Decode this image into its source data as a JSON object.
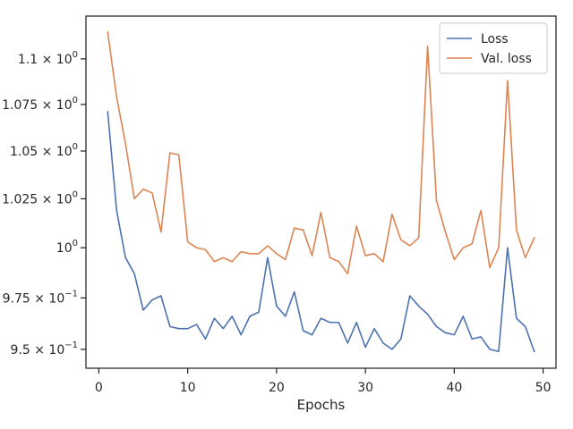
{
  "chart_data": {
    "type": "line",
    "xlabel": "Epochs",
    "ylabel": "",
    "title": "",
    "yscale": "log",
    "xlim": [
      -1.45,
      51.45
    ],
    "ylim": [
      0.941,
      1.124
    ],
    "grid": false,
    "legend_position": "top-right",
    "x_ticks": [
      {
        "value": 0,
        "label": "0"
      },
      {
        "value": 10,
        "label": "10"
      },
      {
        "value": 20,
        "label": "20"
      },
      {
        "value": 30,
        "label": "30"
      },
      {
        "value": 40,
        "label": "40"
      },
      {
        "value": 50,
        "label": "50"
      }
    ],
    "y_ticks": [
      {
        "value": 0.95,
        "mantissa": "9.5",
        "exp": "−1"
      },
      {
        "value": 0.975,
        "mantissa": "9.75",
        "exp": "−1"
      },
      {
        "value": 1.0,
        "mantissa": "1",
        "exp": "0"
      },
      {
        "value": 1.025,
        "mantissa": "1.025",
        "exp": "0"
      },
      {
        "value": 1.05,
        "mantissa": "1.05",
        "exp": "0"
      },
      {
        "value": 1.075,
        "mantissa": "1.075",
        "exp": "0"
      },
      {
        "value": 1.1,
        "mantissa": "1.1",
        "exp": "0"
      }
    ],
    "y_tick_plain_label": "10",
    "x": [
      1,
      2,
      3,
      4,
      5,
      6,
      7,
      8,
      9,
      10,
      11,
      12,
      13,
      14,
      15,
      16,
      17,
      18,
      19,
      20,
      21,
      22,
      23,
      24,
      25,
      26,
      27,
      28,
      29,
      30,
      31,
      32,
      33,
      34,
      35,
      36,
      37,
      38,
      39,
      40,
      41,
      42,
      43,
      44,
      45,
      46,
      47,
      48,
      49
    ],
    "series": [
      {
        "name": "Loss",
        "color": "#4c72b0",
        "values": [
          1.071,
          1.019,
          0.995,
          0.987,
          0.969,
          0.974,
          0.976,
          0.961,
          0.96,
          0.96,
          0.962,
          0.955,
          0.965,
          0.96,
          0.966,
          0.957,
          0.966,
          0.968,
          0.995,
          0.971,
          0.966,
          0.978,
          0.959,
          0.957,
          0.965,
          0.963,
          0.963,
          0.953,
          0.963,
          0.951,
          0.96,
          0.953,
          0.95,
          0.955,
          0.976,
          0.971,
          0.967,
          0.961,
          0.958,
          0.957,
          0.966,
          0.955,
          0.956,
          0.95,
          0.949,
          1.0,
          0.965,
          0.961,
          0.949
        ]
      },
      {
        "name": "Val. loss",
        "color": "#dd8452",
        "values": [
          1.115,
          1.079,
          1.054,
          1.025,
          1.03,
          1.028,
          1.008,
          1.049,
          1.048,
          1.003,
          1.0,
          0.999,
          0.993,
          0.995,
          0.993,
          0.998,
          0.997,
          0.997,
          1.001,
          0.997,
          0.994,
          1.01,
          1.009,
          0.996,
          1.018,
          0.995,
          0.993,
          0.987,
          1.011,
          0.996,
          0.997,
          0.993,
          1.017,
          1.004,
          1.001,
          1.005,
          1.107,
          1.024,
          1.008,
          0.994,
          1.0,
          1.002,
          1.019,
          0.99,
          1.0,
          1.088,
          1.009,
          0.995,
          1.005
        ]
      }
    ]
  }
}
